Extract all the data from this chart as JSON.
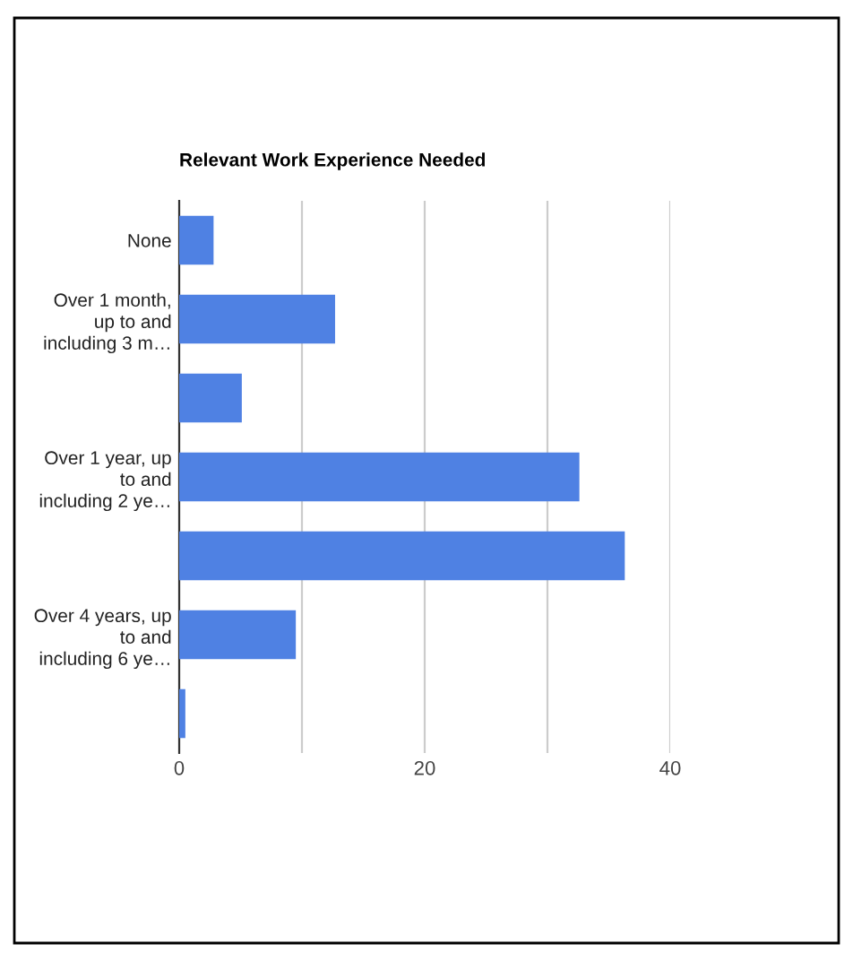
{
  "chart_data": {
    "type": "bar",
    "orientation": "horizontal",
    "title": "Relevant Work Experience Needed",
    "categories": [
      "None",
      "Over 1 month,\nup to and\nincluding 3 m…",
      null,
      "Over 1 year, up\nto and\nincluding 2 ye…",
      null,
      "Over 4 years, up\nto and\nincluding 6 ye…",
      null
    ],
    "values": [
      2.8,
      12.7,
      5.1,
      32.6,
      36.3,
      9.5,
      0.5
    ],
    "color": "#4f81e3",
    "xlim": [
      0,
      40
    ],
    "xticks": [
      0,
      {
        "value": 10,
        "label": null
      },
      20,
      {
        "value": 30,
        "label": null
      },
      40
    ],
    "grid": "x"
  }
}
